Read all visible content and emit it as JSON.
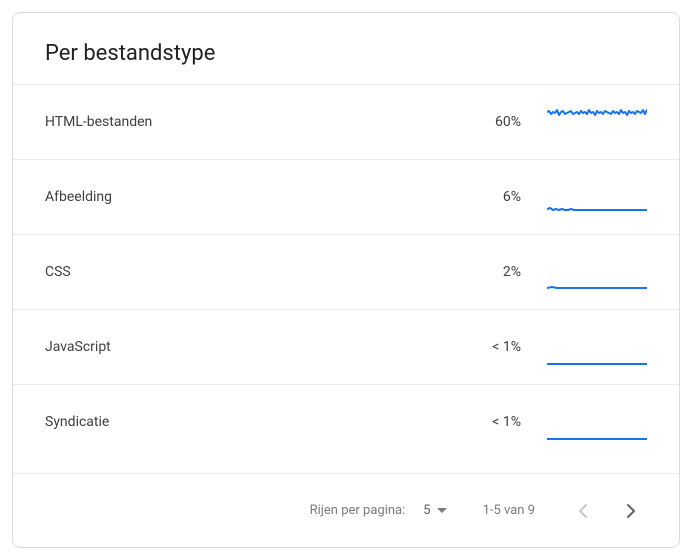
{
  "card": {
    "title": "Per bestandstype"
  },
  "spark": {
    "width": 100,
    "height": 40,
    "stroke": "#1a73e8",
    "stroke_width": 2
  },
  "rows": [
    {
      "label": "HTML-bestanden",
      "value": "60%",
      "points": [
        0,
        10,
        2,
        9,
        4,
        12,
        6,
        10,
        8,
        11,
        10,
        8,
        12,
        13,
        14,
        10,
        16,
        9,
        18,
        12,
        20,
        11,
        22,
        10,
        24,
        9,
        26,
        12,
        28,
        11,
        30,
        10,
        32,
        12,
        34,
        9,
        36,
        11,
        38,
        10,
        40,
        12,
        42,
        8,
        44,
        11,
        46,
        10,
        48,
        13,
        50,
        9,
        52,
        11,
        54,
        10,
        56,
        12,
        58,
        9,
        60,
        10,
        62,
        11,
        64,
        12,
        66,
        9,
        68,
        11,
        70,
        10,
        72,
        12,
        74,
        8,
        76,
        11,
        78,
        10,
        80,
        13,
        82,
        9,
        84,
        11,
        86,
        10,
        88,
        12,
        90,
        9,
        92,
        10,
        94,
        11,
        96,
        8,
        98,
        12,
        100,
        8
      ]
    },
    {
      "label": "Afbeelding",
      "value": "6%",
      "points": [
        0,
        32,
        3,
        31,
        6,
        33,
        9,
        32,
        12,
        33,
        15,
        32,
        18,
        33,
        21,
        33,
        24,
        32,
        27,
        33,
        30,
        33,
        33,
        33,
        36,
        33,
        39,
        33,
        42,
        33,
        45,
        33,
        48,
        33,
        51,
        33,
        54,
        33,
        57,
        33,
        60,
        33,
        63,
        33,
        66,
        33,
        69,
        33,
        72,
        33,
        75,
        33,
        78,
        33,
        81,
        33,
        84,
        33,
        87,
        33,
        90,
        33,
        93,
        33,
        96,
        33,
        100,
        33
      ]
    },
    {
      "label": "CSS",
      "value": "2%",
      "points": [
        0,
        36,
        5,
        35,
        10,
        36,
        15,
        36,
        20,
        36,
        25,
        36,
        30,
        36,
        35,
        36,
        40,
        36,
        45,
        36,
        50,
        36,
        55,
        36,
        60,
        36,
        65,
        36,
        70,
        36,
        75,
        36,
        80,
        36,
        85,
        36,
        90,
        36,
        95,
        36,
        100,
        36
      ]
    },
    {
      "label": "JavaScript",
      "value": "< 1%",
      "points": [
        0,
        37,
        10,
        37,
        20,
        37,
        30,
        37,
        40,
        37,
        50,
        37,
        60,
        37,
        70,
        37,
        80,
        37,
        90,
        37,
        100,
        37
      ]
    },
    {
      "label": "Syndicatie",
      "value": "< 1%",
      "points": [
        0,
        37,
        10,
        37,
        20,
        37,
        30,
        37,
        40,
        37,
        50,
        37,
        60,
        37,
        70,
        37,
        80,
        37,
        90,
        37,
        100,
        37
      ]
    }
  ],
  "pager": {
    "rows_per_page_label": "Rijen per pagina:",
    "rows_per_page_value": "5",
    "range": "1-5 van 9",
    "prev_disabled": true,
    "next_disabled": false
  }
}
